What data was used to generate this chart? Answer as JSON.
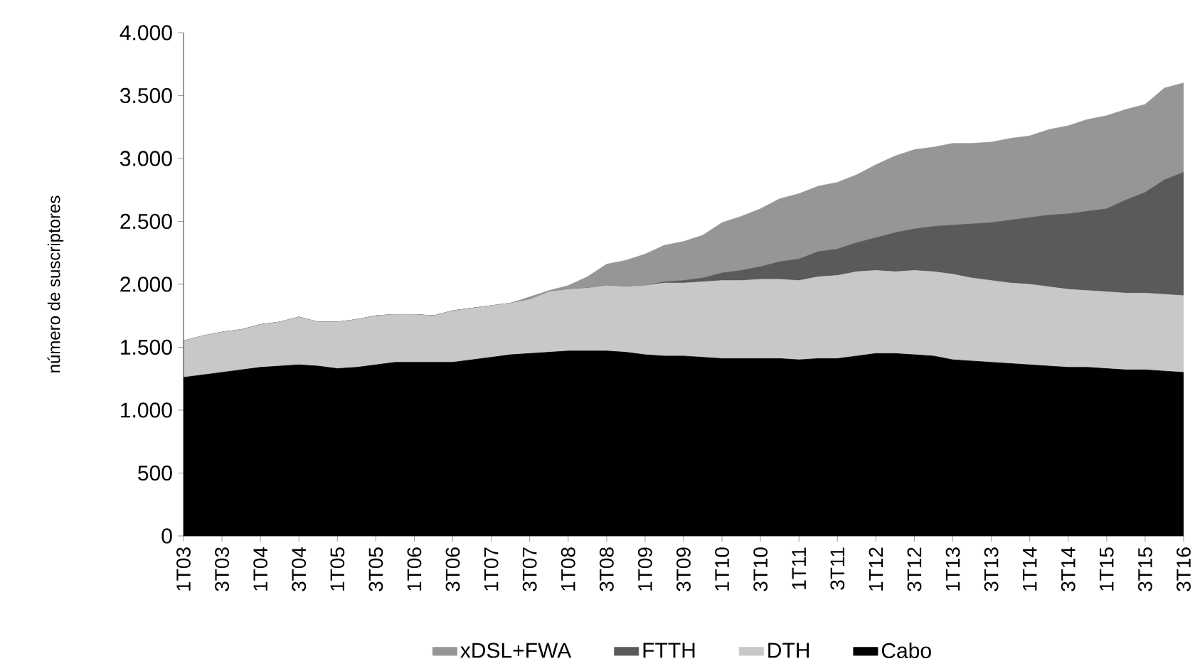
{
  "chart_data": {
    "type": "area",
    "stacked": true,
    "ylabel": "número de suscriptores",
    "categories": [
      "1T03",
      null,
      "3T03",
      null,
      "1T04",
      null,
      "3T04",
      null,
      "1T05",
      null,
      "3T05",
      null,
      "1T06",
      null,
      "3T06",
      null,
      "1T07",
      null,
      "3T07",
      null,
      "1T08",
      null,
      "3T08",
      null,
      "1T09",
      null,
      "3T09",
      null,
      "1T10",
      null,
      "3T10",
      null,
      "1T11",
      null,
      "3T11",
      null,
      "1T12",
      null,
      "3T12",
      null,
      "1T13",
      null,
      "3T13",
      null,
      "1T14",
      null,
      "3T14",
      null,
      "1T15",
      null,
      "3T15",
      null,
      "3T16"
    ],
    "series": [
      {
        "name": "Cabo",
        "color": "#000000",
        "values": [
          1260,
          1280,
          1300,
          1320,
          1340,
          1350,
          1360,
          1350,
          1330,
          1340,
          1360,
          1380,
          1380,
          1380,
          1380,
          1400,
          1420,
          1440,
          1450,
          1460,
          1470,
          1470,
          1470,
          1460,
          1440,
          1430,
          1430,
          1420,
          1410,
          1410,
          1410,
          1410,
          1400,
          1410,
          1410,
          1430,
          1450,
          1450,
          1440,
          1430,
          1400,
          1390,
          1380,
          1370,
          1360,
          1350,
          1340,
          1340,
          1330,
          1320,
          1320,
          1310,
          1300
        ]
      },
      {
        "name": "DTH",
        "color": "#c8c8c8",
        "values": [
          290,
          310,
          320,
          320,
          340,
          350,
          380,
          350,
          370,
          380,
          390,
          380,
          380,
          370,
          410,
          410,
          410,
          410,
          430,
          480,
          490,
          500,
          520,
          520,
          550,
          580,
          580,
          600,
          620,
          620,
          630,
          630,
          630,
          650,
          660,
          670,
          660,
          650,
          670,
          670,
          680,
          660,
          650,
          640,
          640,
          630,
          620,
          610,
          610,
          610,
          610,
          610,
          610
        ]
      },
      {
        "name": "FTTH",
        "color": "#5a5a5a",
        "values": [
          0,
          0,
          0,
          0,
          0,
          0,
          0,
          0,
          0,
          0,
          0,
          0,
          0,
          0,
          0,
          0,
          0,
          0,
          0,
          0,
          0,
          0,
          0,
          0,
          0,
          10,
          20,
          30,
          60,
          80,
          100,
          140,
          170,
          200,
          210,
          230,
          260,
          310,
          330,
          360,
          390,
          430,
          460,
          500,
          530,
          570,
          600,
          630,
          660,
          740,
          800,
          910,
          980
        ]
      },
      {
        "name": "xDSL+FWA",
        "color": "#969696",
        "values": [
          0,
          0,
          0,
          0,
          0,
          0,
          0,
          0,
          0,
          0,
          0,
          0,
          0,
          0,
          0,
          0,
          0,
          0,
          20,
          10,
          30,
          90,
          170,
          210,
          250,
          290,
          310,
          340,
          400,
          430,
          460,
          500,
          520,
          520,
          530,
          540,
          580,
          610,
          630,
          630,
          650,
          640,
          640,
          650,
          650,
          680,
          700,
          730,
          740,
          720,
          700,
          730,
          710
        ]
      }
    ],
    "ylim": [
      0,
      4000
    ],
    "yticks": [
      0,
      500,
      {
        "value": 1000,
        "label": "1.000"
      },
      {
        "value": 1500,
        "label": "1.500"
      },
      {
        "value": 2000,
        "label": "2.000"
      },
      {
        "value": 2500,
        "label": "2.500"
      },
      {
        "value": 3000,
        "label": "3.000"
      },
      {
        "value": 3500,
        "label": "3.500"
      },
      {
        "value": 4000,
        "label": "4.000"
      }
    ],
    "grid": false,
    "legend": "bottom"
  }
}
